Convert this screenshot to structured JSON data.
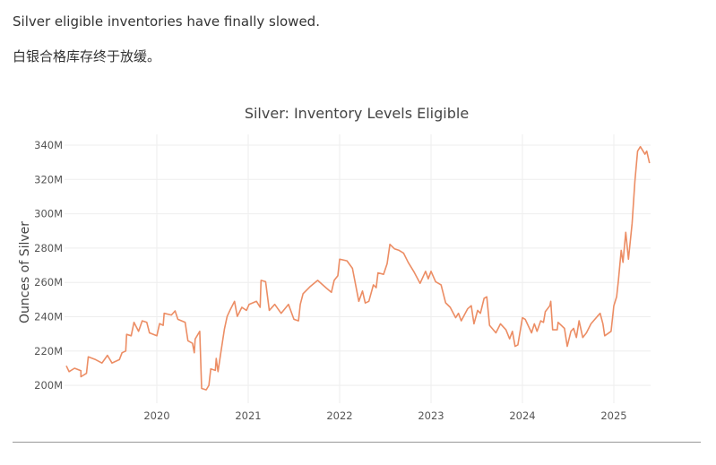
{
  "article": {
    "text_en": "Silver eligible inventories have finally slowed.",
    "text_zh": "白银合格库存终于放缓。"
  },
  "chart_data": {
    "type": "line",
    "title": "Silver: Inventory Levels Eligible",
    "xlabel": "",
    "ylabel": "Ounces of Silver",
    "x_ticks": [
      "2020",
      "2021",
      "2022",
      "2023",
      "2024",
      "2025"
    ],
    "y_ticks": [
      "200M",
      "220M",
      "240M",
      "260M",
      "280M",
      "300M",
      "320M",
      "340M"
    ],
    "ylim": [
      190,
      345
    ],
    "xlim": [
      2019.0,
      2025.45
    ],
    "grid": true,
    "legend": "none",
    "line_color": "#ec8d64",
    "series": [
      {
        "x": [
          2019.01,
          2019.04,
          2019.1,
          2019.17,
          2019.17,
          2019.23,
          2019.25,
          2019.33,
          2019.4,
          2019.46,
          2019.51,
          2019.59,
          2019.62,
          2019.66,
          2019.67,
          2019.72,
          2019.75,
          2019.8,
          2019.84,
          2019.89,
          2019.92,
          2020.0,
          2020.03,
          2020.07,
          2020.08,
          2020.16,
          2020.2,
          2020.23,
          2020.31,
          2020.34,
          2020.39,
          2020.41,
          2020.42,
          2020.47,
          2020.49,
          2020.54,
          2020.57,
          2020.59,
          2020.64,
          2020.65,
          2020.67,
          2020.7,
          2020.74,
          2020.77,
          2020.8,
          2020.85,
          2020.88,
          2020.93,
          2020.98,
          2021.01,
          2021.09,
          2021.13,
          2021.14,
          2021.19,
          2021.23,
          2021.29,
          2021.36,
          2021.44,
          2021.5,
          2021.55,
          2021.57,
          2021.6,
          2021.68,
          2021.76,
          2021.85,
          2021.91,
          2021.94,
          2021.98,
          2022.0,
          2022.08,
          2022.14,
          2022.21,
          2022.25,
          2022.28,
          2022.32,
          2022.37,
          2022.4,
          2022.42,
          2022.48,
          2022.52,
          2022.55,
          2022.6,
          2022.65,
          2022.7,
          2022.75,
          2022.81,
          2022.88,
          2022.94,
          2022.97,
          2023.0,
          2023.05,
          2023.11,
          2023.16,
          2023.21,
          2023.27,
          2023.3,
          2023.33,
          2023.4,
          2023.44,
          2023.47,
          2023.51,
          2023.54,
          2023.58,
          2023.61,
          2023.64,
          2023.71,
          2023.76,
          2023.82,
          2023.86,
          2023.89,
          2023.92,
          2023.95,
          2024.0,
          2024.03,
          2024.1,
          2024.13,
          2024.16,
          2024.2,
          2024.23,
          2024.25,
          2024.3,
          2024.31,
          2024.33,
          2024.38,
          2024.39,
          2024.46,
          2024.49,
          2024.53,
          2024.56,
          2024.59,
          2024.62,
          2024.66,
          2024.7,
          2024.75,
          2024.82,
          2024.85,
          2024.88,
          2024.9,
          2024.97,
          2025.0,
          2025.03,
          2025.05,
          2025.08,
          2025.1,
          2025.13,
          2025.16,
          2025.2,
          2025.23,
          2025.26,
          2025.29,
          2025.34,
          2025.36,
          2025.39
        ],
        "y": [
          211.4,
          208,
          210,
          208.5,
          205,
          207,
          216.6,
          215,
          213,
          217.5,
          213,
          215,
          219,
          220,
          229.7,
          228.9,
          236.7,
          231.5,
          237.6,
          236.7,
          230.6,
          228.9,
          236,
          235,
          242,
          241,
          243.4,
          238.5,
          236.7,
          226,
          224.5,
          219,
          227,
          231.5,
          198.2,
          197.4,
          200,
          209.6,
          208.7,
          215.7,
          208,
          219,
          233,
          240.2,
          243.7,
          249,
          240.2,
          245.5,
          243.7,
          247.2,
          249,
          245.5,
          261.2,
          260.4,
          243.7,
          247.2,
          242,
          247.2,
          238.5,
          237.6,
          247.2,
          253.4,
          257.7,
          261.2,
          256.9,
          254.2,
          261.2,
          263.9,
          273.5,
          272.6,
          268.2,
          249,
          255,
          248,
          249,
          258.6,
          256.9,
          265.6,
          264.7,
          270.9,
          282.2,
          279.6,
          278.7,
          277,
          271.7,
          266.5,
          259.5,
          266.5,
          262.1,
          266.5,
          260.4,
          258.6,
          248.1,
          245.5,
          239.4,
          242,
          237.6,
          244.6,
          246.4,
          235.9,
          243.7,
          242,
          250.7,
          251.6,
          235,
          230.6,
          235.9,
          232.4,
          227.1,
          231.5,
          222.7,
          223.6,
          239.4,
          238.5,
          230.6,
          235.9,
          231.5,
          237.6,
          236.7,
          242.9,
          246.4,
          249,
          232.4,
          232.4,
          236.7,
          233.2,
          222.7,
          231.5,
          233.2,
          227.9,
          237.6,
          227.9,
          230.6,
          235.9,
          240.2,
          242,
          235.9,
          228.9,
          231.5,
          246.4,
          251.6,
          261.2,
          278.7,
          271.7,
          289.2,
          273.5,
          294.5,
          319,
          336.5,
          339.1,
          334.7,
          336.5,
          329.5
        ]
      }
    ]
  }
}
